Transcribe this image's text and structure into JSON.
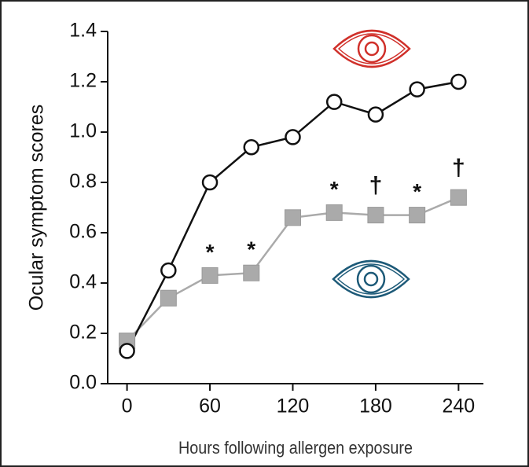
{
  "chart_data": {
    "type": "line",
    "ylabel": "Ocular symptom scores",
    "xlabel": "Hours following allergen exposure",
    "x": [
      0,
      30,
      60,
      90,
      120,
      150,
      180,
      210,
      240
    ],
    "series": [
      {
        "color": "#111111",
        "marker": "circle",
        "values": [
          0.13,
          0.45,
          0.8,
          0.94,
          0.98,
          1.12,
          1.07,
          1.17,
          1.2
        ]
      },
      {
        "color": "#aaaaaa",
        "marker": "square",
        "values": [
          0.17,
          0.34,
          0.43,
          0.44,
          0.66,
          0.68,
          0.67,
          0.67,
          0.74
        ]
      }
    ],
    "annotations": [
      {
        "x": 60,
        "text": "*"
      },
      {
        "x": 90,
        "text": "*"
      },
      {
        "x": 150,
        "text": "*"
      },
      {
        "x": 180,
        "text": "†"
      },
      {
        "x": 210,
        "text": "*"
      },
      {
        "x": 240,
        "text": "†"
      }
    ],
    "xlim": [
      -14,
      258
    ],
    "ylim": [
      0,
      1.4
    ],
    "xticks": [
      0,
      60,
      120,
      180,
      240
    ],
    "yticks": [
      {
        "value": 0,
        "label": "0.0"
      },
      0.2,
      0.4,
      0.6,
      0.8,
      {
        "value": 1,
        "label": "1.0"
      },
      1.2,
      1.4
    ]
  }
}
